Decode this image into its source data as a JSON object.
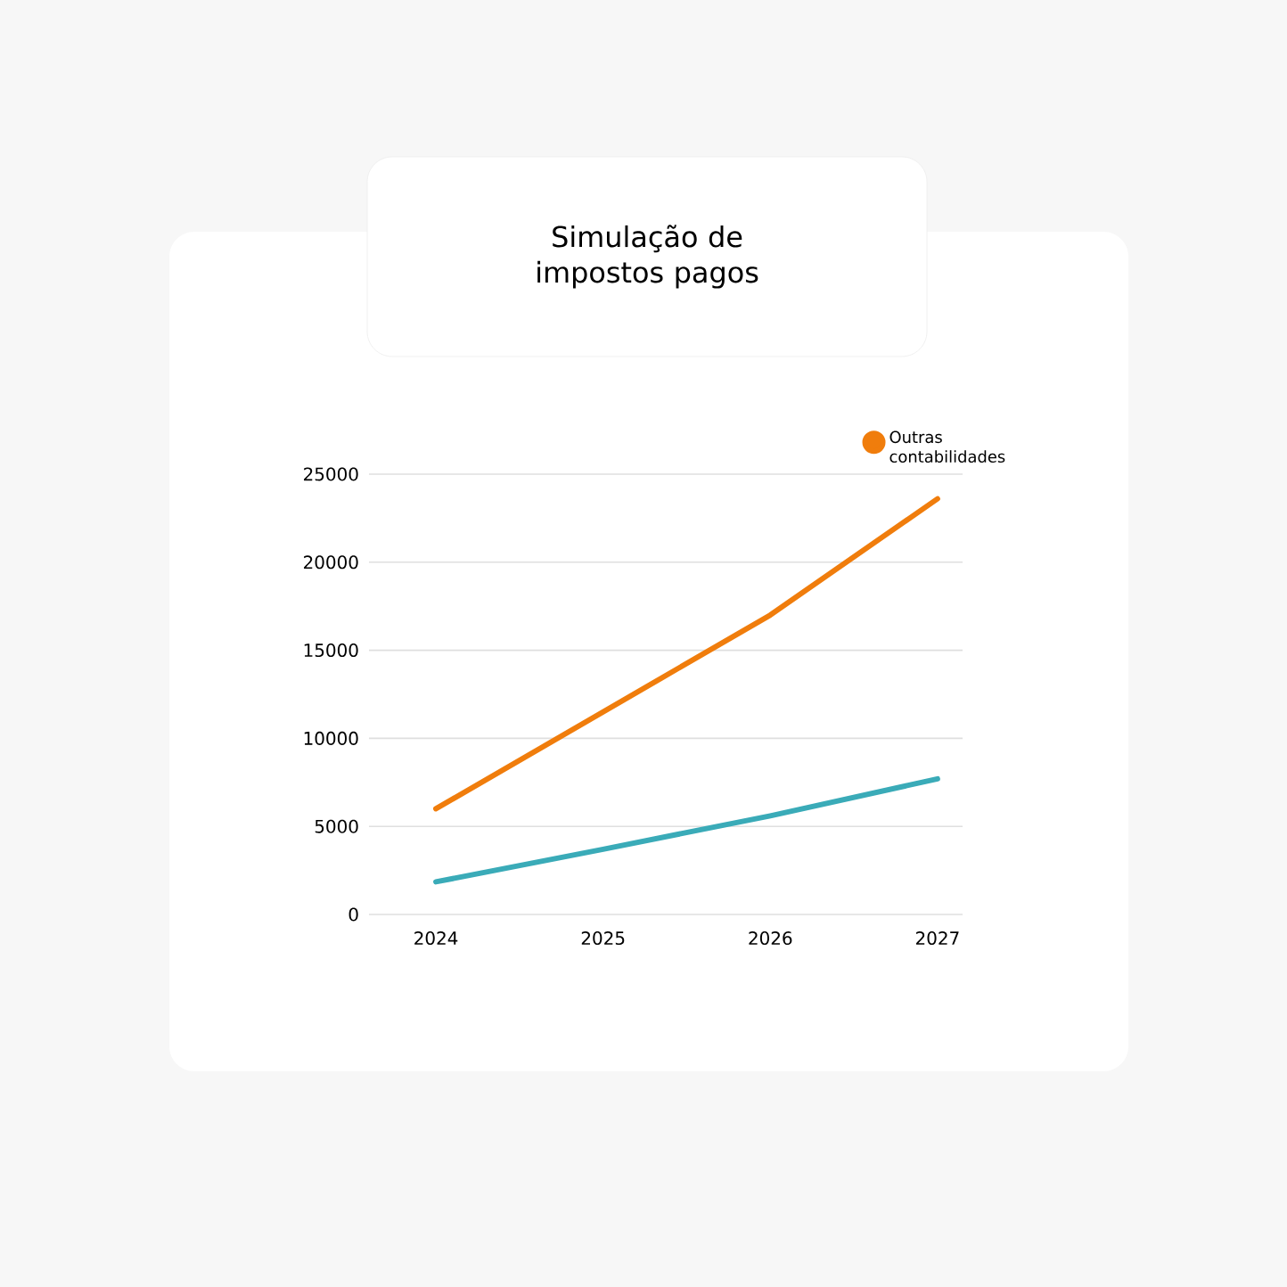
{
  "chart_data": {
    "type": "line",
    "title": "Simulação de impostos pagos",
    "categories": [
      "2024",
      "2025",
      "2026",
      "2027"
    ],
    "series": [
      {
        "name": "Outras contabilidades",
        "color": "#f07d0c",
        "values": [
          6000,
          11500,
          17000,
          23600
        ]
      },
      {
        "color": "#3aabb8",
        "values": [
          1850,
          3700,
          5600,
          7700
        ]
      }
    ],
    "ylim": [
      0,
      25000
    ],
    "yticks": [
      0,
      5000,
      10000,
      15000,
      20000,
      25000
    ],
    "grid": "y",
    "legend": "top right",
    "marker": "none",
    "line_style": "solid"
  }
}
